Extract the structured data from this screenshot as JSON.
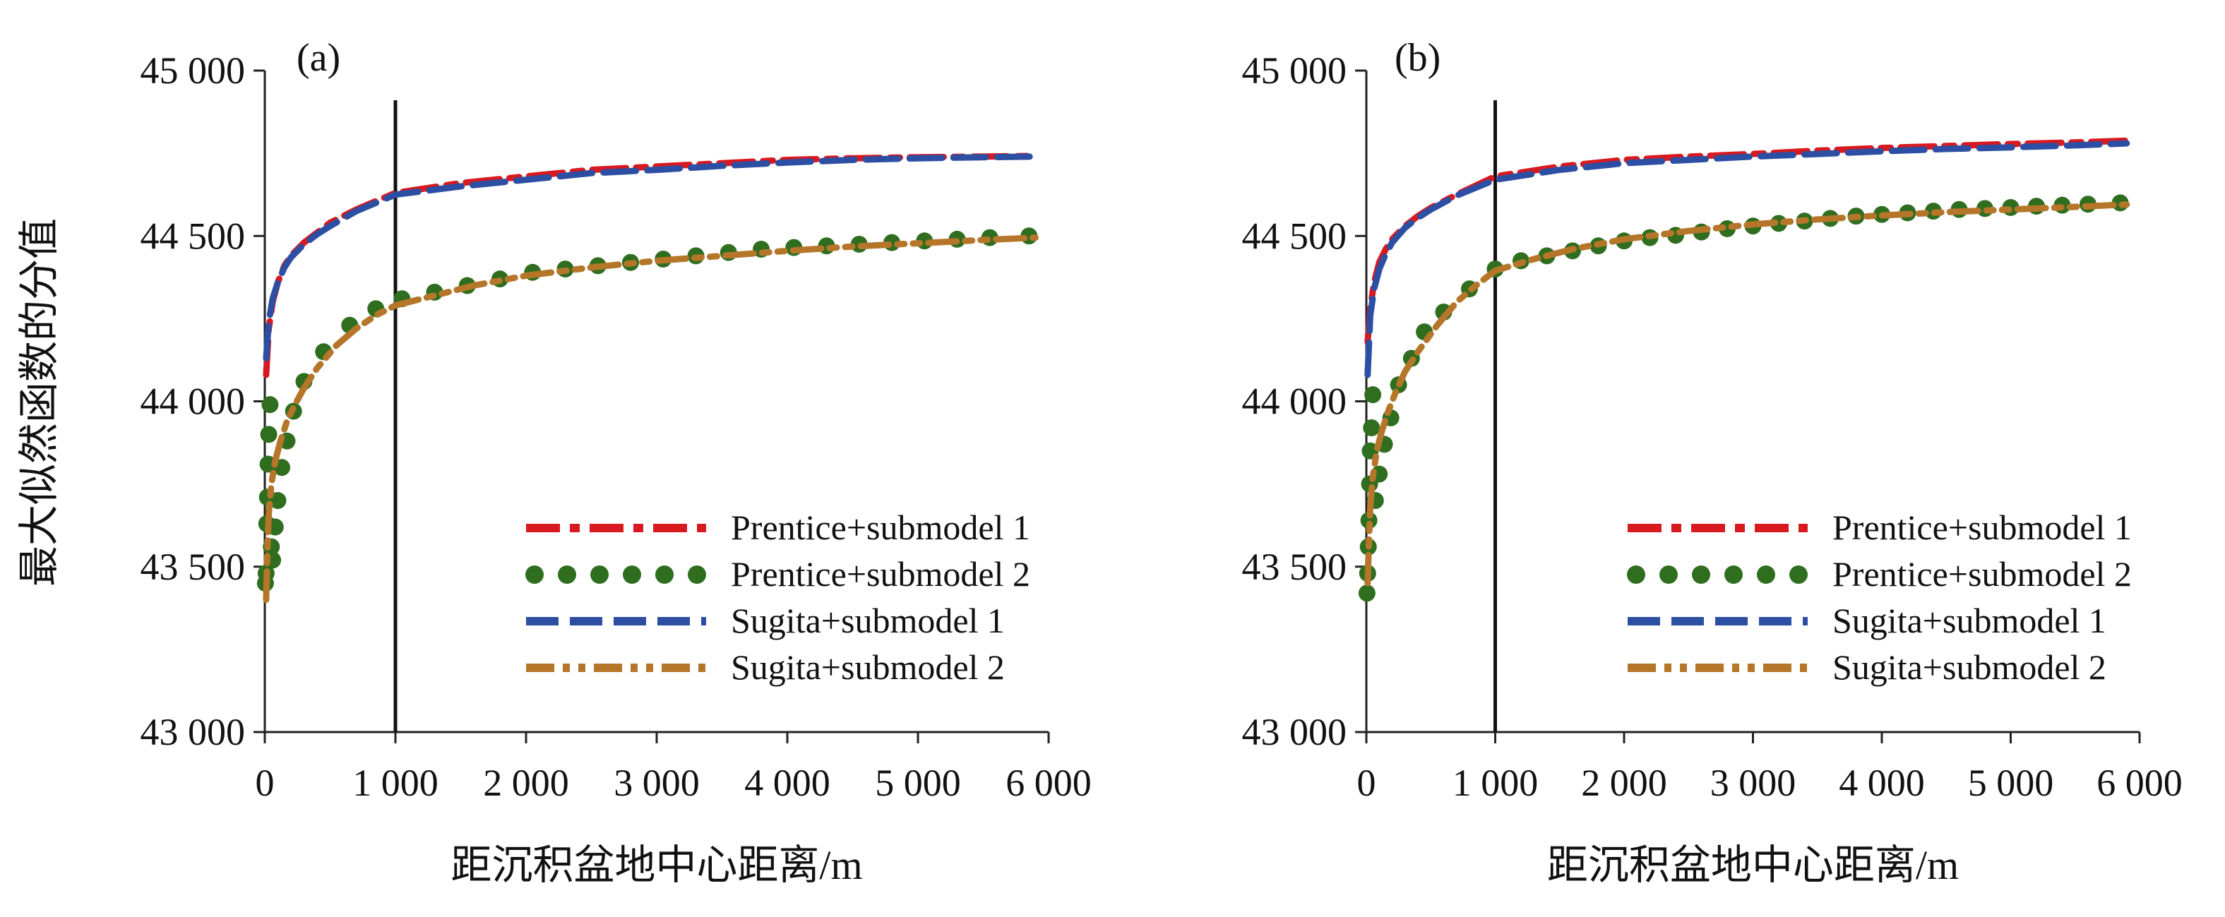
{
  "figure": {
    "y_axis_title": "最大似然函数的分值"
  },
  "chart_data": [
    {
      "type": "line",
      "panel_label": "(a)",
      "xlabel": "距沉积盆地中心距离/m",
      "ylabel": "最大似然函数的分值",
      "xlim": [
        0,
        6000
      ],
      "ylim": [
        43000,
        45000
      ],
      "x_ticks": [
        0,
        1000,
        2000,
        3000,
        4000,
        5000,
        6000
      ],
      "x_tick_labels": [
        "0",
        "1 000",
        "2 000",
        "3 000",
        "4 000",
        "5 000",
        "6 000"
      ],
      "y_ticks": [
        43000,
        43500,
        44000,
        44500,
        45000
      ],
      "y_tick_labels": [
        "43 000",
        "43 500",
        "44 000",
        "44 500",
        "45 000"
      ],
      "vertical_line_x": 1000,
      "grid": false,
      "legend_position": "lower-right",
      "series": [
        {
          "name": "Prentice+submodel 1",
          "style": "dashdot",
          "color": "#d71920",
          "x": [
            10,
            30,
            60,
            100,
            150,
            200,
            300,
            400,
            500,
            700,
            1000,
            1500,
            2000,
            2500,
            3000,
            3500,
            4000,
            4500,
            5000,
            5500,
            5900
          ],
          "y": [
            44080,
            44220,
            44300,
            44360,
            44410,
            44440,
            44480,
            44510,
            44540,
            44580,
            44630,
            44660,
            44680,
            44700,
            44710,
            44720,
            44730,
            44735,
            44738,
            44740,
            44742
          ]
        },
        {
          "name": "Prentice+submodel 2",
          "style": "dots",
          "color": "#2f6d1f",
          "x": [
            5,
            10,
            15,
            20,
            25,
            30,
            40,
            50,
            60,
            80,
            100,
            130,
            170,
            220,
            300,
            450,
            650,
            850,
            1050,
            1300,
            1550,
            1800,
            2050,
            2300,
            2550,
            2800,
            3050,
            3300,
            3550,
            3800,
            4050,
            4300,
            4550,
            4800,
            5050,
            5300,
            5550,
            5850
          ],
          "y": [
            43450,
            43480,
            43630,
            43710,
            43810,
            43900,
            43990,
            43560,
            43520,
            43620,
            43700,
            43800,
            43880,
            43970,
            44060,
            44150,
            44230,
            44280,
            44310,
            44330,
            44350,
            44370,
            44390,
            44400,
            44410,
            44420,
            44430,
            44440,
            44450,
            44460,
            44465,
            44470,
            44475,
            44480,
            44485,
            44490,
            44495,
            44500
          ]
        },
        {
          "name": "Sugita+submodel 1",
          "style": "dashed",
          "color": "#2c4fa3",
          "x": [
            10,
            30,
            60,
            100,
            150,
            200,
            300,
            400,
            500,
            700,
            1000,
            1500,
            2000,
            2500,
            3000,
            3500,
            4000,
            4500,
            5000,
            5500,
            5900
          ],
          "y": [
            44130,
            44240,
            44310,
            44360,
            44405,
            44435,
            44475,
            44505,
            44530,
            44575,
            44625,
            44650,
            44670,
            44690,
            44700,
            44712,
            44722,
            44730,
            44735,
            44738,
            44740
          ]
        },
        {
          "name": "Sugita+submodel 2",
          "style": "dashdotdot",
          "color": "#b5762a",
          "x": [
            10,
            20,
            30,
            50,
            80,
            120,
            170,
            230,
            300,
            400,
            550,
            700,
            850,
            1000,
            1300,
            1600,
            2000,
            2500,
            3000,
            3500,
            4000,
            4500,
            5000,
            5500,
            5900
          ],
          "y": [
            43400,
            43550,
            43660,
            43750,
            43820,
            43880,
            43940,
            43990,
            44040,
            44100,
            44170,
            44220,
            44260,
            44290,
            44320,
            44350,
            44380,
            44405,
            44425,
            44440,
            44455,
            44468,
            44478,
            44488,
            44495
          ]
        }
      ]
    },
    {
      "type": "line",
      "panel_label": "(b)",
      "xlabel": "距沉积盆地中心距离/m",
      "ylabel": "",
      "xlim": [
        0,
        6000
      ],
      "ylim": [
        43000,
        45000
      ],
      "x_ticks": [
        0,
        1000,
        2000,
        3000,
        4000,
        5000,
        6000
      ],
      "x_tick_labels": [
        "0",
        "1 000",
        "2 000",
        "3 000",
        "4 000",
        "5 000",
        "6 000"
      ],
      "y_ticks": [
        43000,
        43500,
        44000,
        44500,
        45000
      ],
      "y_tick_labels": [
        "43 000",
        "43 500",
        "44 000",
        "44 500",
        "45 000"
      ],
      "vertical_line_x": 1000,
      "grid": false,
      "legend_position": "lower-right",
      "series": [
        {
          "name": "Prentice+submodel 1",
          "style": "dashdot",
          "color": "#d71920",
          "x": [
            10,
            30,
            60,
            100,
            150,
            200,
            300,
            400,
            500,
            700,
            1000,
            1500,
            2000,
            2500,
            3000,
            3500,
            4000,
            4500,
            5000,
            5500,
            5900
          ],
          "y": [
            44180,
            44280,
            44360,
            44420,
            44460,
            44490,
            44530,
            44560,
            44585,
            44625,
            44680,
            44710,
            44730,
            44740,
            44748,
            44758,
            44766,
            44772,
            44778,
            44783,
            44788
          ]
        },
        {
          "name": "Prentice+submodel 2",
          "style": "dots",
          "color": "#2f6d1f",
          "x": [
            5,
            10,
            15,
            20,
            25,
            30,
            40,
            50,
            70,
            100,
            140,
            190,
            250,
            350,
            450,
            600,
            800,
            1000,
            1200,
            1400,
            1600,
            1800,
            2000,
            2200,
            2400,
            2600,
            2800,
            3000,
            3200,
            3400,
            3600,
            3800,
            4000,
            4200,
            4400,
            4600,
            4800,
            5000,
            5200,
            5400,
            5600,
            5850
          ],
          "y": [
            43420,
            43480,
            43560,
            43640,
            43750,
            43850,
            43920,
            44020,
            43700,
            43780,
            43870,
            43950,
            44050,
            44130,
            44210,
            44270,
            44340,
            44400,
            44425,
            44440,
            44455,
            44470,
            44485,
            44495,
            44502,
            44512,
            44522,
            44530,
            44538,
            44545,
            44553,
            44560,
            44565,
            44570,
            44575,
            44580,
            44583,
            44586,
            44590,
            44593,
            44596,
            44600
          ]
        },
        {
          "name": "Sugita+submodel 1",
          "style": "dashed",
          "color": "#2c4fa3",
          "x": [
            10,
            30,
            60,
            100,
            150,
            200,
            300,
            400,
            500,
            700,
            1000,
            1500,
            2000,
            2500,
            3000,
            3500,
            4000,
            4500,
            5000,
            5500,
            5900
          ],
          "y": [
            44080,
            44260,
            44340,
            44400,
            44445,
            44480,
            44525,
            44555,
            44580,
            44622,
            44670,
            44700,
            44720,
            44730,
            44740,
            44748,
            44756,
            44763,
            44768,
            44774,
            44780
          ]
        },
        {
          "name": "Sugita+submodel 2",
          "style": "dashdotdot",
          "color": "#b5762a",
          "x": [
            10,
            20,
            30,
            50,
            80,
            120,
            170,
            230,
            300,
            400,
            550,
            700,
            850,
            1000,
            1300,
            1600,
            2000,
            2500,
            3000,
            3500,
            4000,
            4500,
            5000,
            5500,
            5900
          ],
          "y": [
            43450,
            43580,
            43680,
            43770,
            43850,
            43910,
            43970,
            44030,
            44090,
            44150,
            44230,
            44300,
            44350,
            44395,
            44430,
            44460,
            44490,
            44515,
            44535,
            44550,
            44562,
            44572,
            44580,
            44588,
            44595
          ]
        }
      ]
    }
  ]
}
